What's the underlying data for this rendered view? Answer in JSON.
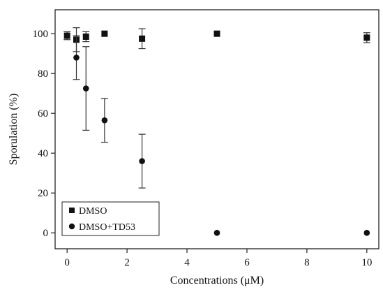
{
  "chart_data": {
    "type": "scatter",
    "title": "",
    "xlabel": "Concentrations (μM)",
    "ylabel": "Sporulation (%)",
    "xlim": [
      -0.4,
      10.4
    ],
    "ylim": [
      -8,
      112
    ],
    "x_ticks": [
      0,
      2,
      4,
      6,
      8,
      10
    ],
    "y_ticks": [
      0,
      20,
      40,
      60,
      80,
      100
    ],
    "legend_position": "bottom-left",
    "grid": false,
    "series": [
      {
        "name": "DMSO",
        "marker": "square",
        "color": "#111111",
        "points": [
          {
            "x": 0,
            "y": 99,
            "err": 2
          },
          {
            "x": 0.31,
            "y": 97,
            "err": 6
          },
          {
            "x": 0.63,
            "y": 98.5,
            "err": 2.5
          },
          {
            "x": 1.25,
            "y": 100,
            "err": 0
          },
          {
            "x": 2.5,
            "y": 97.5,
            "err": 5
          },
          {
            "x": 5,
            "y": 100,
            "err": 0
          },
          {
            "x": 10,
            "y": 98,
            "err": 2.5
          }
        ]
      },
      {
        "name": "DMSO+TD53",
        "marker": "circle",
        "color": "#111111",
        "points": [
          {
            "x": 0.31,
            "y": 88,
            "err": 11
          },
          {
            "x": 0.63,
            "y": 72.5,
            "err": 21
          },
          {
            "x": 1.25,
            "y": 56.5,
            "err": 11
          },
          {
            "x": 2.5,
            "y": 36,
            "err": 13.5
          },
          {
            "x": 5,
            "y": 0,
            "err": 0
          },
          {
            "x": 10,
            "y": 0,
            "err": 0
          }
        ]
      }
    ]
  }
}
